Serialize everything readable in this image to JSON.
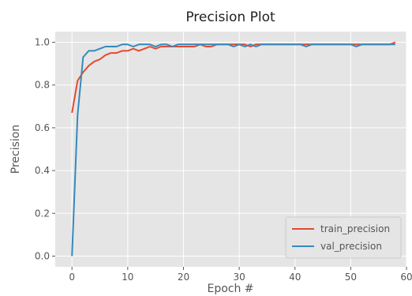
{
  "chart_data": {
    "type": "line",
    "title": "Precision Plot",
    "xlabel": "Epoch #",
    "ylabel": "Precision",
    "xlim": [
      -3,
      60
    ],
    "ylim": [
      -0.05,
      1.05
    ],
    "x_ticks": [
      0,
      10,
      20,
      30,
      40,
      50,
      60
    ],
    "y_ticks": [
      0.0,
      0.2,
      0.4,
      0.6,
      0.8,
      1.0
    ],
    "grid": true,
    "legend_position": "lower-right",
    "x": [
      0,
      1,
      2,
      3,
      4,
      5,
      6,
      7,
      8,
      9,
      10,
      11,
      12,
      13,
      14,
      15,
      16,
      17,
      18,
      19,
      20,
      21,
      22,
      23,
      24,
      25,
      26,
      27,
      28,
      29,
      30,
      31,
      32,
      33,
      34,
      35,
      36,
      37,
      38,
      39,
      40,
      41,
      42,
      43,
      44,
      45,
      46,
      47,
      48,
      49,
      50,
      51,
      52,
      53,
      54,
      55,
      56,
      57,
      58
    ],
    "series": [
      {
        "name": "train_precision",
        "color": "#e24a33",
        "values": [
          0.67,
          0.82,
          0.86,
          0.89,
          0.91,
          0.92,
          0.94,
          0.95,
          0.95,
          0.96,
          0.96,
          0.97,
          0.96,
          0.97,
          0.98,
          0.97,
          0.98,
          0.98,
          0.98,
          0.98,
          0.98,
          0.98,
          0.98,
          0.99,
          0.98,
          0.98,
          0.99,
          0.99,
          0.99,
          0.99,
          0.99,
          0.99,
          0.98,
          0.99,
          0.99,
          0.99,
          0.99,
          0.99,
          0.99,
          0.99,
          0.99,
          0.99,
          0.99,
          0.99,
          0.99,
          0.99,
          0.99,
          0.99,
          0.99,
          0.99,
          0.99,
          0.99,
          0.99,
          0.99,
          0.99,
          0.99,
          0.99,
          0.99,
          1.0
        ]
      },
      {
        "name": "val_precision",
        "color": "#348abd",
        "values": [
          0.0,
          0.66,
          0.93,
          0.96,
          0.96,
          0.97,
          0.98,
          0.98,
          0.98,
          0.99,
          0.99,
          0.98,
          0.99,
          0.99,
          0.99,
          0.98,
          0.99,
          0.99,
          0.98,
          0.99,
          0.99,
          0.99,
          0.99,
          0.99,
          0.99,
          0.99,
          0.99,
          0.99,
          0.99,
          0.98,
          0.99,
          0.98,
          0.99,
          0.98,
          0.99,
          0.99,
          0.99,
          0.99,
          0.99,
          0.99,
          0.99,
          0.99,
          0.98,
          0.99,
          0.99,
          0.99,
          0.99,
          0.99,
          0.99,
          0.99,
          0.99,
          0.98,
          0.99,
          0.99,
          0.99,
          0.99,
          0.99,
          0.99,
          0.99
        ]
      }
    ]
  }
}
